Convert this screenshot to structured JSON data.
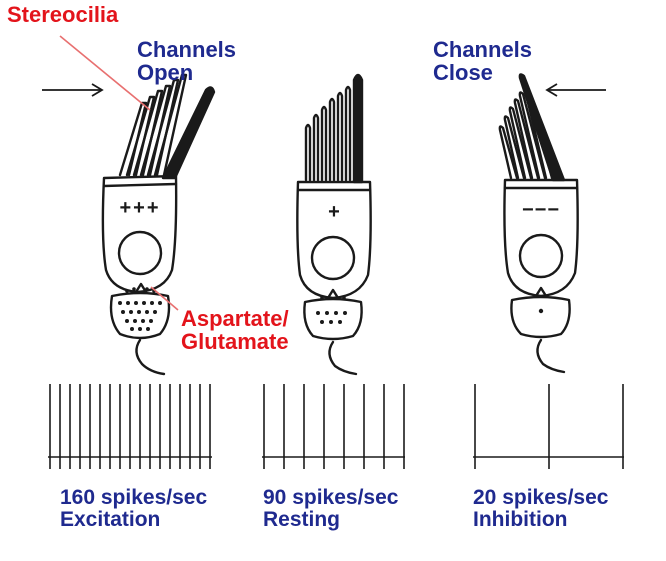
{
  "labels": {
    "stereocilia": "Stereocilia",
    "channels_open_1": "Channels",
    "channels_open_2": "Open",
    "channels_close_1": "Channels",
    "channels_close_2": "Close",
    "transmitter_1": "Aspartate/",
    "transmitter_2": "Glutamate"
  },
  "cells": [
    {
      "name": "excitation",
      "charge": "+++",
      "rate_label": "160 spikes/sec",
      "state_label": "Excitation",
      "spikes_per_sec": 160
    },
    {
      "name": "resting",
      "charge": "+",
      "rate_label": "90 spikes/sec",
      "state_label": "Resting",
      "spikes_per_sec": 90
    },
    {
      "name": "inhibition",
      "charge": "−−−",
      "rate_label": "20 spikes/sec",
      "state_label": "Inhibition",
      "spikes_per_sec": 20
    }
  ],
  "colors": {
    "label_red": "#e3141b",
    "label_blue": "#1f2a8f",
    "stroke": "#1a1a1a"
  }
}
